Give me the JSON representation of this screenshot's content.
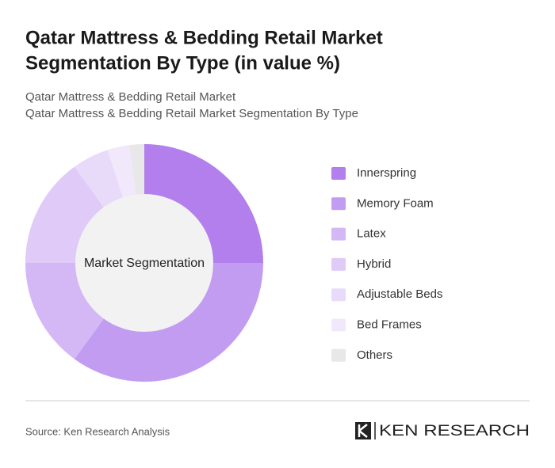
{
  "chart_data": {
    "type": "donut",
    "title": [
      "Qatar Mattress & Bedding Retail Market",
      "Segmentation By Type (in value %)"
    ],
    "subtitle": [
      "Qatar Mattress & Bedding Retail Market",
      "Qatar Mattress & Bedding Retail Market Segmentation By Type"
    ],
    "center_label": "Market Segmentation",
    "categories": [
      "Innerspring",
      "Memory Foam",
      "Latex",
      "Hybrid",
      "Adjustable Beds",
      "Bed Frames",
      "Others"
    ],
    "values": [
      25,
      35,
      15,
      15,
      5,
      3,
      2
    ],
    "colors": [
      "#b27fec",
      "#c29cf0",
      "#d4b8f5",
      "#dfcaf8",
      "#e8dbfa",
      "#f1e8fc",
      "#e8e8e8"
    ],
    "source": "Source: Ken Research Analysis",
    "logo": "KEN RESEARCH"
  }
}
